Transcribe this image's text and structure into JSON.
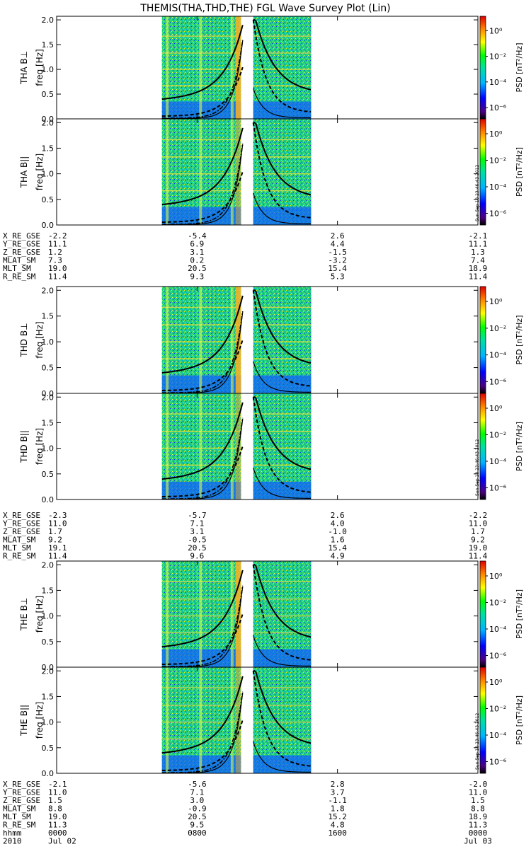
{
  "title": "THEMIS(THA,THD,THE) FGL Wave Survey Plot (Lin)",
  "freq_ylabel": "freq [Hz]",
  "colorbar_label": "PSD [nT²/Hz]",
  "colorbar_ticks": [
    "10⁰",
    "10⁻²",
    "10⁻⁴",
    "10⁻⁶"
  ],
  "timestamp": "Sun Sep 18 23:46:43 2012",
  "probes": [
    {
      "perp_label": "THA B⊥",
      "par_label": "THA B||",
      "eph": [
        {
          "label": "X_RE_GSE",
          "values": [
            "-2.2",
            "-5.4",
            "2.6",
            "-2.1"
          ]
        },
        {
          "label": "Y_RE_GSE",
          "values": [
            "11.1",
            "6.9",
            "4.4",
            "11.1"
          ]
        },
        {
          "label": "Z_RE_GSE",
          "values": [
            "1.2",
            "3.1",
            "-1.5",
            "1.3"
          ]
        },
        {
          "label": "MLAT_SM",
          "values": [
            "7.3",
            "0.2",
            "-3.2",
            "7.4"
          ]
        },
        {
          "label": "MLT_SM",
          "values": [
            "19.0",
            "20.5",
            "15.4",
            "18.9"
          ]
        },
        {
          "label": "R_RE_SM",
          "values": [
            "11.4",
            "9.3",
            "5.3",
            "11.4"
          ]
        }
      ]
    },
    {
      "perp_label": "THD B⊥",
      "par_label": "THD B||",
      "eph": [
        {
          "label": "X_RE_GSE",
          "values": [
            "-2.3",
            "-5.7",
            "2.6",
            "-2.2"
          ]
        },
        {
          "label": "Y_RE_GSE",
          "values": [
            "11.0",
            "7.1",
            "4.0",
            "11.0"
          ]
        },
        {
          "label": "Z_RE_GSE",
          "values": [
            "1.7",
            "3.1",
            "-1.0",
            "1.7"
          ]
        },
        {
          "label": "MLAT_SM",
          "values": [
            "9.2",
            "-0.5",
            "1.6",
            "9.2"
          ]
        },
        {
          "label": "MLT_SM",
          "values": [
            "19.1",
            "20.5",
            "15.4",
            "19.0"
          ]
        },
        {
          "label": "R_RE_SM",
          "values": [
            "11.4",
            "9.6",
            "4.9",
            "11.4"
          ]
        }
      ]
    },
    {
      "perp_label": "THE B⊥",
      "par_label": "THE B||",
      "eph": [
        {
          "label": "X_RE_GSE",
          "values": [
            "-2.1",
            "-5.6",
            "2.8",
            "-2.0"
          ]
        },
        {
          "label": "Y_RE_GSE",
          "values": [
            "11.0",
            "7.1",
            "3.7",
            "11.0"
          ]
        },
        {
          "label": "Z_RE_GSE",
          "values": [
            "1.5",
            "3.0",
            "-1.1",
            "1.5"
          ]
        },
        {
          "label": "MLAT_SM",
          "values": [
            "8.8",
            "-0.9",
            "1.8",
            "8.8"
          ]
        },
        {
          "label": "MLT_SM",
          "values": [
            "19.0",
            "20.5",
            "15.2",
            "18.9"
          ]
        },
        {
          "label": "R_RE_SM",
          "values": [
            "11.3",
            "9.5",
            "4.8",
            "11.3"
          ]
        }
      ]
    }
  ],
  "time_axis": {
    "rows": [
      {
        "label": "hhmm",
        "values": [
          "0000",
          "0800",
          "1600",
          "0000"
        ]
      },
      {
        "label": "2010",
        "values": [
          "Jul 02",
          "",
          "",
          "Jul 03"
        ]
      }
    ]
  },
  "chart_data": {
    "type": "heatmap",
    "title": "THEMIS(THA,THD,THE) FGL Wave Survey Plot (Lin)",
    "ylabel": "freq [Hz]",
    "ylim": [
      0,
      2.0
    ],
    "yticks": [
      "0.0",
      "0.5",
      "1.0",
      "1.5",
      "2.0"
    ],
    "xlim_hours": [
      0,
      24
    ],
    "xticks": [
      "0000",
      "0800",
      "1600",
      "0000"
    ],
    "colorbar": {
      "label": "PSD [nT²/Hz]",
      "scale": "log",
      "ticks": [
        "10⁰",
        "10⁻²",
        "10⁻⁴",
        "10⁻⁶"
      ]
    },
    "data_intervals_hours": [
      [
        6.0,
        10.5
      ],
      [
        11.2,
        14.5
      ]
    ],
    "panels": [
      "THA B⊥",
      "THA B||",
      "THD B⊥",
      "THD B||",
      "THE B⊥",
      "THE B||"
    ]
  }
}
